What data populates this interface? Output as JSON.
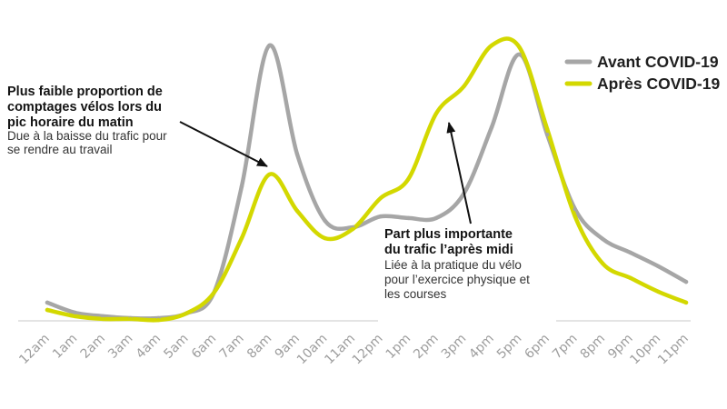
{
  "chart_data": {
    "type": "line",
    "categories": [
      "12am",
      "1am",
      "2am",
      "3am",
      "4am",
      "5am",
      "6am",
      "7am",
      "8am",
      "9am",
      "10am",
      "11am",
      "12pm",
      "1pm",
      "2pm",
      "3pm",
      "4pm",
      "5pm",
      "6pm",
      "7pm",
      "8pm",
      "9pm",
      "10pm",
      "11pm"
    ],
    "series": [
      {
        "name": "Avant COVID-19",
        "color": "#a6a6a6",
        "values": [
          6.7,
          3.0,
          1.7,
          1.0,
          1.0,
          2.7,
          10.3,
          49.3,
          101.0,
          61.0,
          36.7,
          34.3,
          38.3,
          37.7,
          37.7,
          46.7,
          71.0,
          97.7,
          68.3,
          41.0,
          30.0,
          25.0,
          20.0,
          14.3
        ]
      },
      {
        "name": "Après COVID-19",
        "color": "#d3d800",
        "values": [
          4.0,
          1.7,
          0.7,
          0.7,
          0.3,
          2.7,
          10.3,
          30.3,
          53.7,
          40.3,
          30.3,
          33.7,
          45.0,
          52.0,
          76.0,
          86.0,
          101.0,
          100.3,
          70.3,
          38.3,
          21.0,
          15.7,
          10.7,
          6.7
        ]
      }
    ],
    "ylim": [
      0,
      105
    ],
    "grid": false,
    "legend": "top-right",
    "annotations": [
      {
        "title_lines": [
          "Plus faible proportion de",
          "comptages vélos lors du",
          "pic horaire du matin"
        ],
        "text_lines": [
          "Due à la baisse du trafic pour",
          "se rendre au travail"
        ]
      },
      {
        "title_lines": [
          "Part plus importante",
          "du trafic l’après midi"
        ],
        "text_lines": [
          "Liée à la pratique du vélo",
          "pour l’exercice physique et",
          "les courses"
        ]
      }
    ]
  }
}
